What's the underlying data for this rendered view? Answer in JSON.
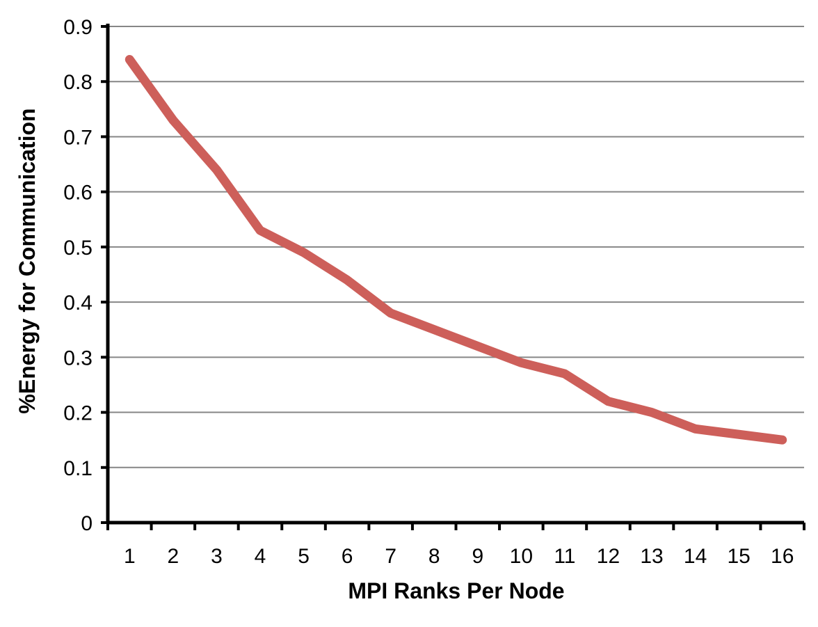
{
  "chart_data": {
    "type": "line",
    "title": "",
    "xlabel": "MPI Ranks Per Node",
    "ylabel": "%Energy for Communication",
    "categories": [
      "1",
      "2",
      "3",
      "4",
      "5",
      "6",
      "7",
      "8",
      "9",
      "10",
      "11",
      "12",
      "13",
      "14",
      "15",
      "16"
    ],
    "series": [
      {
        "values": [
          0.84,
          0.73,
          0.64,
          0.53,
          0.49,
          0.44,
          0.38,
          0.35,
          0.32,
          0.29,
          0.27,
          0.22,
          0.2,
          0.17,
          0.16,
          0.15
        ],
        "color": "#cd5f5a"
      }
    ],
    "ylim": [
      0,
      0.9
    ],
    "yticks": [
      "0",
      "0.1",
      "0.2",
      "0.3",
      "0.4",
      "0.5",
      "0.6",
      "0.7",
      "0.8",
      "0.9"
    ],
    "grid": true,
    "legend": "none"
  }
}
